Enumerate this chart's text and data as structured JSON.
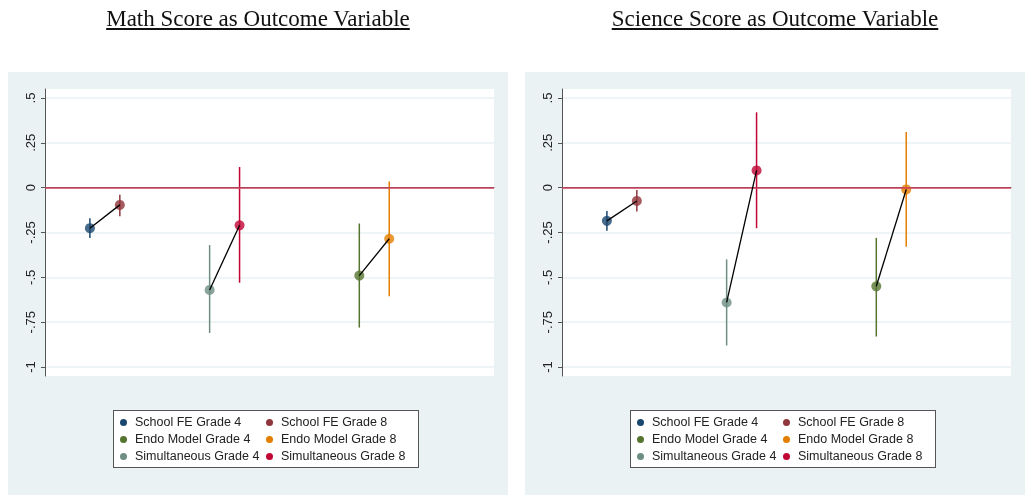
{
  "chart_data": [
    {
      "type": "scatter",
      "title": "Math Score as Outcome Variable",
      "marker": "circle",
      "grid": "y",
      "legend": "bottom",
      "tick_labels": "y",
      "categories": [
        null,
        null,
        null,
        null,
        null,
        null,
        null,
        null,
        null,
        null,
        null,
        null,
        null,
        null,
        null
      ],
      "ylim": [
        -1.05,
        0.55
      ],
      "yticks": [
        {
          "value": 0.5,
          "label": ".5"
        },
        {
          "value": 0.25,
          "label": ".25"
        },
        {
          "value": 0,
          "label": "0"
        },
        {
          "value": -0.25,
          "label": "-.25"
        },
        {
          "value": -0.5,
          "label": "-.5"
        },
        {
          "value": -0.75,
          "label": "-.75"
        },
        {
          "value": -1,
          "label": "-1"
        }
      ],
      "ref_lines": [
        {
          "axis": "y",
          "value": 0,
          "color": "#d0415e"
        }
      ],
      "series": [
        {
          "name": "School FE Grade 4",
          "color": "#1a476f",
          "values": [
            null,
            -0.226,
            null,
            null,
            null,
            null,
            null,
            null,
            null,
            null,
            null,
            null,
            null,
            null,
            null
          ],
          "errors": [
            null,
            [
              -0.28,
              -0.17
            ],
            null,
            null,
            null,
            null,
            null,
            null,
            null,
            null,
            null,
            null,
            null,
            null,
            null
          ]
        },
        {
          "name": "School FE Grade 8",
          "color": "#90353b",
          "values": [
            null,
            null,
            -0.096,
            null,
            null,
            null,
            null,
            null,
            null,
            null,
            null,
            null,
            null,
            null,
            null
          ],
          "errors": [
            null,
            null,
            [
              -0.16,
              -0.04
            ],
            null,
            null,
            null,
            null,
            null,
            null,
            null,
            null,
            null,
            null,
            null,
            null
          ]
        },
        {
          "name": "Endo Model Grade 4",
          "color": "#55752f",
          "values": [
            null,
            null,
            null,
            null,
            null,
            null,
            null,
            null,
            null,
            null,
            -0.49,
            null,
            null,
            null,
            null
          ],
          "errors": [
            null,
            null,
            null,
            null,
            null,
            null,
            null,
            null,
            null,
            null,
            [
              -0.78,
              -0.2
            ],
            null,
            null,
            null,
            null
          ]
        },
        {
          "name": "Endo Model Grade 8",
          "color": "#e37e00",
          "values": [
            null,
            null,
            null,
            null,
            null,
            null,
            null,
            null,
            null,
            null,
            null,
            -0.285,
            null,
            null,
            null
          ],
          "errors": [
            null,
            null,
            null,
            null,
            null,
            null,
            null,
            null,
            null,
            null,
            null,
            [
              -0.605,
              0.035
            ],
            null,
            null,
            null
          ]
        },
        {
          "name": "Simultaneous Grade 4",
          "color": "#6e8e84",
          "values": [
            null,
            null,
            null,
            null,
            null,
            -0.57,
            null,
            null,
            null,
            null,
            null,
            null,
            null,
            null,
            null
          ],
          "errors": [
            null,
            null,
            null,
            null,
            null,
            [
              -0.81,
              -0.32
            ],
            null,
            null,
            null,
            null,
            null,
            null,
            null,
            null,
            null
          ]
        },
        {
          "name": "Simultaneous Grade 8",
          "color": "#c10534",
          "values": [
            null,
            null,
            null,
            null,
            null,
            null,
            -0.21,
            null,
            null,
            null,
            null,
            null,
            null,
            null,
            null
          ],
          "errors": [
            null,
            null,
            null,
            null,
            null,
            null,
            [
              -0.53,
              0.115
            ],
            null,
            null,
            null,
            null,
            null,
            null,
            null,
            null
          ]
        },
        {
          "type": "line",
          "marker": "none",
          "color": "#000000",
          "values": [
            null,
            -0.226,
            -0.096,
            null,
            null,
            null,
            null,
            null,
            null,
            null,
            null,
            null,
            null,
            null,
            null
          ]
        },
        {
          "type": "line",
          "marker": "none",
          "color": "#000000",
          "values": [
            null,
            null,
            null,
            null,
            null,
            -0.57,
            -0.21,
            null,
            null,
            null,
            null,
            null,
            null,
            null,
            null
          ]
        },
        {
          "type": "line",
          "marker": "none",
          "color": "#000000",
          "values": [
            null,
            null,
            null,
            null,
            null,
            null,
            null,
            null,
            null,
            null,
            -0.49,
            -0.285,
            null,
            null,
            null
          ]
        }
      ]
    },
    {
      "type": "scatter",
      "title": "Science Score as Outcome Variable",
      "marker": "circle",
      "grid": "y",
      "legend": "bottom",
      "tick_labels": "y",
      "categories": [
        null,
        null,
        null,
        null,
        null,
        null,
        null,
        null,
        null,
        null,
        null,
        null,
        null,
        null,
        null
      ],
      "ylim": [
        -1.05,
        0.55
      ],
      "yticks": [
        {
          "value": 0.5,
          "label": ".5"
        },
        {
          "value": 0.25,
          "label": ".25"
        },
        {
          "value": 0,
          "label": "0"
        },
        {
          "value": -0.25,
          "label": "-.25"
        },
        {
          "value": -0.5,
          "label": "-.5"
        },
        {
          "value": -0.75,
          "label": "-.75"
        },
        {
          "value": -1,
          "label": "-1"
        }
      ],
      "ref_lines": [
        {
          "axis": "y",
          "value": 0,
          "color": "#d0415e"
        }
      ],
      "series": [
        {
          "name": "School FE Grade 4",
          "color": "#1a476f",
          "values": [
            null,
            -0.185,
            null,
            null,
            null,
            null,
            null,
            null,
            null,
            null,
            null,
            null,
            null,
            null,
            null
          ],
          "errors": [
            null,
            [
              -0.24,
              -0.13
            ],
            null,
            null,
            null,
            null,
            null,
            null,
            null,
            null,
            null,
            null,
            null,
            null,
            null
          ]
        },
        {
          "name": "School FE Grade 8",
          "color": "#90353b",
          "values": [
            null,
            null,
            -0.074,
            null,
            null,
            null,
            null,
            null,
            null,
            null,
            null,
            null,
            null,
            null,
            null
          ],
          "errors": [
            null,
            null,
            [
              -0.133,
              -0.013
            ],
            null,
            null,
            null,
            null,
            null,
            null,
            null,
            null,
            null,
            null,
            null,
            null
          ]
        },
        {
          "name": "Endo Model Grade 4",
          "color": "#55752f",
          "values": [
            null,
            null,
            null,
            null,
            null,
            null,
            null,
            null,
            null,
            null,
            -0.55,
            null,
            null,
            null,
            null
          ],
          "errors": [
            null,
            null,
            null,
            null,
            null,
            null,
            null,
            null,
            null,
            null,
            [
              -0.83,
              -0.28
            ],
            null,
            null,
            null,
            null
          ]
        },
        {
          "name": "Endo Model Grade 8",
          "color": "#e37e00",
          "values": [
            null,
            null,
            null,
            null,
            null,
            null,
            null,
            null,
            null,
            null,
            null,
            -0.01,
            null,
            null,
            null
          ],
          "errors": [
            null,
            null,
            null,
            null,
            null,
            null,
            null,
            null,
            null,
            null,
            null,
            [
              -0.33,
              0.31
            ],
            null,
            null,
            null
          ]
        },
        {
          "name": "Simultaneous Grade 4",
          "color": "#6e8e84",
          "values": [
            null,
            null,
            null,
            null,
            null,
            -0.64,
            null,
            null,
            null,
            null,
            null,
            null,
            null,
            null,
            null
          ],
          "errors": [
            null,
            null,
            null,
            null,
            null,
            [
              -0.88,
              -0.4
            ],
            null,
            null,
            null,
            null,
            null,
            null,
            null,
            null,
            null
          ]
        },
        {
          "name": "Simultaneous Grade 8",
          "color": "#c10534",
          "values": [
            null,
            null,
            null,
            null,
            null,
            null,
            0.096,
            null,
            null,
            null,
            null,
            null,
            null,
            null,
            null
          ],
          "errors": [
            null,
            null,
            null,
            null,
            null,
            null,
            [
              -0.226,
              0.42
            ],
            null,
            null,
            null,
            null,
            null,
            null,
            null,
            null
          ]
        },
        {
          "type": "line",
          "marker": "none",
          "color": "#000000",
          "values": [
            null,
            -0.185,
            -0.074,
            null,
            null,
            null,
            null,
            null,
            null,
            null,
            null,
            null,
            null,
            null,
            null
          ]
        },
        {
          "type": "line",
          "marker": "none",
          "color": "#000000",
          "values": [
            null,
            null,
            null,
            null,
            null,
            -0.64,
            0.096,
            null,
            null,
            null,
            null,
            null,
            null,
            null,
            null
          ]
        },
        {
          "type": "line",
          "marker": "none",
          "color": "#000000",
          "values": [
            null,
            null,
            null,
            null,
            null,
            null,
            null,
            null,
            null,
            null,
            -0.55,
            -0.01,
            null,
            null,
            null
          ]
        }
      ]
    }
  ]
}
